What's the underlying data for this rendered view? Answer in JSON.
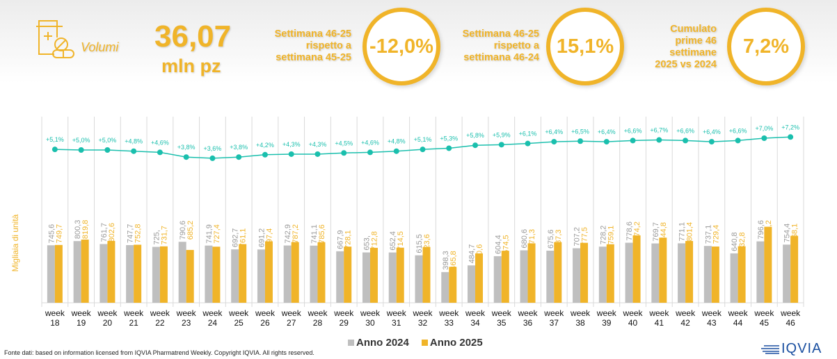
{
  "header": {
    "icon": "medicine-bottle-pills-icon",
    "volumi_label": "Volumi",
    "big_value": "36,07",
    "big_unit": "mln pz",
    "kpis": [
      {
        "label_lines": [
          "Settimana 46-25",
          "rispetto a",
          "settimana 45-25"
        ],
        "value": "-12,0%"
      },
      {
        "label_lines": [
          "Settimana 46-25",
          "rispetto a",
          "settimana 46-24"
        ],
        "value": "15,1%"
      },
      {
        "label_lines": [
          "Cumulato",
          "prime 46",
          "settimane",
          "2025 vs 2024"
        ],
        "value": "7,2%"
      }
    ]
  },
  "colors": {
    "accent": "#F0B429",
    "series_2024": "#BFBFBF",
    "series_2025": "#F0B429",
    "line": "#1ABFAD"
  },
  "chart_data": {
    "type": "bar",
    "title": "",
    "xlabel": "",
    "ylabel": "Migliaia di unità",
    "categories": [
      "week 18",
      "week 19",
      "week 20",
      "week 21",
      "week 22",
      "week 23",
      "week 24",
      "week 25",
      "week 26",
      "week 27",
      "week 28",
      "week 29",
      "week 30",
      "week 31",
      "week 32",
      "week 33",
      "week 34",
      "week 35",
      "week 36",
      "week 37",
      "week 38",
      "week 39",
      "week 40",
      "week 41",
      "week 42",
      "week 43",
      "week 44",
      "week 45",
      "week 46"
    ],
    "series": [
      {
        "name": "Anno 2024",
        "values": [
          745.6,
          800.3,
          761.7,
          747.7,
          725.0,
          790.6,
          741.9,
          692.7,
          691.2,
          742.9,
          741.1,
          667.9,
          653.0,
          652.4,
          615.5,
          398.3,
          484.7,
          604.4,
          680.6,
          675.6,
          707.2,
          728.2,
          778.6,
          769.7,
          771.1,
          737.1,
          640.8,
          796.6,
          754.4
        ],
        "labels": [
          "745,6",
          "800,3",
          "761,7",
          "747,7",
          "725,",
          "790,6",
          "741,9",
          "692,7",
          "691,2",
          "742,9",
          "741,1",
          "667,9",
          "653,",
          "652,4",
          "615,5",
          "398,3",
          "484,7",
          "604,4",
          "680,6",
          "675,6",
          "707,2",
          "728,2",
          "778,6",
          "769,7",
          "771,1",
          "737,1",
          "640,8",
          "796,6",
          "754,4"
        ]
      },
      {
        "name": "Anno 2025",
        "values": [
          749.7,
          819.8,
          802.6,
          752.8,
          731.7,
          685.2,
          727.4,
          761.1,
          797.4,
          787.2,
          785.6,
          728.1,
          712.8,
          714.5,
          723.6,
          465.8,
          640.6,
          674.5,
          771.3,
          787.3,
          777.5,
          759.1,
          874.2,
          844.8,
          801.4,
          729.4,
          732.8,
          986.2,
          868.1
        ],
        "labels": [
          "749,7",
          "819,8",
          "802,6",
          "752,8",
          "731,7",
          "685,2",
          "727,4",
          "761,1",
          "797,4",
          "787,2",
          "785,6",
          "728,1",
          "712,8",
          "714,5",
          "723,6",
          "465,8",
          "640,6",
          "674,5",
          "771,3",
          "787,3",
          "777,5",
          "759,1",
          "874,2",
          "844,8",
          "801,4",
          "729,4",
          "732,8",
          "986,2",
          "868,1"
        ]
      }
    ],
    "line_series": {
      "name": "Cumulato % var",
      "values": [
        5.1,
        5.0,
        5.0,
        4.8,
        4.6,
        3.8,
        3.6,
        3.8,
        4.2,
        4.3,
        4.3,
        4.5,
        4.6,
        4.8,
        5.1,
        5.3,
        5.8,
        5.9,
        6.1,
        6.4,
        6.5,
        6.4,
        6.6,
        6.7,
        6.6,
        6.4,
        6.6,
        7.0,
        7.2
      ],
      "labels": [
        "+5,1%",
        "+5,0%",
        "+5,0%",
        "+4,8%",
        "+4,6%",
        "+3,8%",
        "+3,6%",
        "+3,8%",
        "+4,2%",
        "+4,3%",
        "+4,3%",
        "+4,5%",
        "+4,6%",
        "+4,8%",
        "+5,1%",
        "+5,3%",
        "+5,8%",
        "+5,9%",
        "+6,1%",
        "+6,4%",
        "+6,5%",
        "+6,4%",
        "+6,6%",
        "+6,7%",
        "+6,6%",
        "+6,4%",
        "+6,6%",
        "+7,0%",
        "+7,2%"
      ]
    },
    "grid": true,
    "legend": "bottom-center"
  },
  "legend": {
    "items": [
      {
        "label": "Anno 2024"
      },
      {
        "label": "Anno 2025"
      }
    ]
  },
  "footer": {
    "source": "Fonte dati: based on information licensed from IQVIA Pharmatrend Weekly. Copyright IQVIA. All rights reserved."
  },
  "logo": {
    "text": "IQVIA"
  }
}
